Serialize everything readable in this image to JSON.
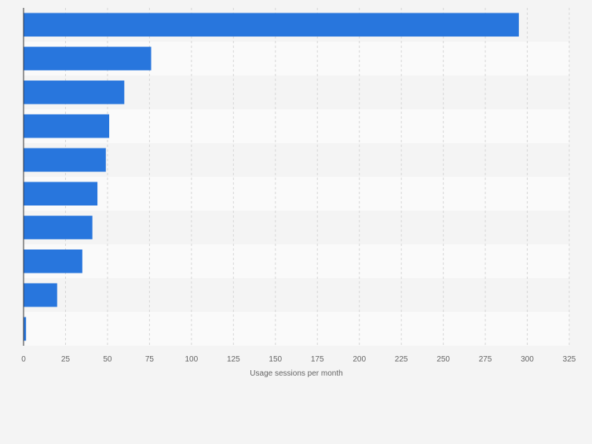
{
  "chart_data": {
    "type": "bar",
    "orientation": "horizontal",
    "categories": [
      "",
      "",
      "",
      "",
      "",
      "",
      "",
      "",
      "",
      ""
    ],
    "values": [
      295,
      76,
      60,
      51,
      49,
      44,
      41,
      35,
      20,
      1.5
    ],
    "xlabel": "Usage sessions per month",
    "ylabel": "",
    "xlim": [
      0,
      325
    ],
    "xticks": [
      0,
      25,
      50,
      75,
      100,
      125,
      150,
      175,
      200,
      225,
      250,
      275,
      300,
      325
    ],
    "grid": "vertical-dashed",
    "legend": "none",
    "colors": {
      "bar": "#2876dd",
      "band_light": "#fafafa",
      "band_dark": "#f4f4f4",
      "grid": "#d6d6d6",
      "axis": "#333333",
      "tick_text": "#666666"
    }
  }
}
